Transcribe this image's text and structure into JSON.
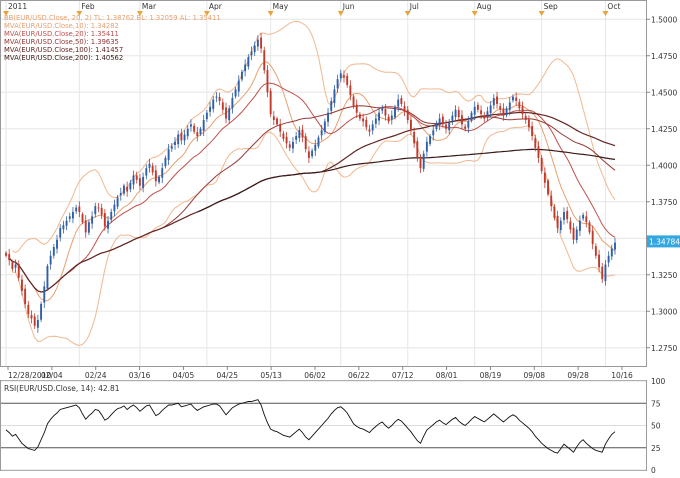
{
  "chart_data": {
    "type": "candlestick",
    "main": {
      "month_labels": [
        "2011",
        "Feb",
        "Mar",
        "Apr",
        "May",
        "Jun",
        "Jul",
        "Aug",
        "Sep",
        "Oct"
      ],
      "date_labels": [
        "12/28/2010",
        "02/04",
        "02/24",
        "03/16",
        "04/05",
        "04/25",
        "05/13",
        "06/02",
        "06/22",
        "07/12",
        "08/01",
        "08/19",
        "09/08",
        "09/28",
        "10/16"
      ],
      "y_ticks": [
        "1.5000",
        "1.4750",
        "1.4500",
        "1.4250",
        "1.4000",
        "1.3750",
        "1.3500",
        "1.3250",
        "1.3000",
        "1.2750"
      ],
      "ylim": [
        1.2625,
        1.5125
      ],
      "last_price": "1.34784",
      "legend": [
        {
          "text": "BB(EUR/USD.Close, 20, 2)  TL: 1.38762  BL: 1.32059  AL: 1.35411",
          "color": "#e8a070"
        },
        {
          "text": "MVA(EUR/USD.Close,10): 1.34282",
          "color": "#e8a070"
        },
        {
          "text": "MVA(EUR/USD.Close,20): 1.35411",
          "color": "#c0504d"
        },
        {
          "text": "MVA(EUR/USD.Close,50): 1.39635",
          "color": "#953735"
        },
        {
          "text": "MVA(EUR/USD.Close,100): 1.41457",
          "color": "#632523"
        },
        {
          "text": "MVA(EUR/USD.Close,200): 1.40562",
          "color": "#3a1a18"
        }
      ],
      "closes": [
        1.338,
        1.335,
        1.329,
        1.332,
        1.323,
        1.314,
        1.305,
        1.298,
        1.295,
        1.29,
        1.294,
        1.305,
        1.317,
        1.331,
        1.338,
        1.344,
        1.349,
        1.357,
        1.359,
        1.362,
        1.365,
        1.368,
        1.371,
        1.368,
        1.361,
        1.354,
        1.361,
        1.365,
        1.372,
        1.371,
        1.366,
        1.358,
        1.362,
        1.368,
        1.373,
        1.378,
        1.381,
        1.386,
        1.382,
        1.388,
        1.393,
        1.39,
        1.386,
        1.392,
        1.398,
        1.401,
        1.395,
        1.389,
        1.392,
        1.398,
        1.405,
        1.411,
        1.413,
        1.416,
        1.421,
        1.417,
        1.421,
        1.425,
        1.428,
        1.423,
        1.42,
        1.425,
        1.431,
        1.436,
        1.44,
        1.445,
        1.447,
        1.444,
        1.438,
        1.432,
        1.439,
        1.446,
        1.452,
        1.458,
        1.464,
        1.469,
        1.474,
        1.478,
        1.482,
        1.486,
        1.48,
        1.465,
        1.45,
        1.435,
        1.431,
        1.428,
        1.423,
        1.418,
        1.415,
        1.412,
        1.416,
        1.42,
        1.424,
        1.419,
        1.411,
        1.405,
        1.41,
        1.414,
        1.419,
        1.424,
        1.43,
        1.436,
        1.444,
        1.452,
        1.459,
        1.463,
        1.46,
        1.455,
        1.448,
        1.44,
        1.436,
        1.432,
        1.43,
        1.426,
        1.423,
        1.428,
        1.432,
        1.436,
        1.439,
        1.434,
        1.43,
        1.434,
        1.44,
        1.445,
        1.442,
        1.437,
        1.431,
        1.424,
        1.415,
        1.405,
        1.398,
        1.408,
        1.416,
        1.42,
        1.424,
        1.429,
        1.432,
        1.428,
        1.425,
        1.429,
        1.434,
        1.438,
        1.433,
        1.428,
        1.425,
        1.43,
        1.436,
        1.44,
        1.438,
        1.435,
        1.432,
        1.437,
        1.441,
        1.446,
        1.442,
        1.438,
        1.434,
        1.439,
        1.443,
        1.447,
        1.444,
        1.439,
        1.435,
        1.431,
        1.426,
        1.42,
        1.412,
        1.405,
        1.396,
        1.388,
        1.38,
        1.372,
        1.364,
        1.357,
        1.362,
        1.368,
        1.363,
        1.356,
        1.349,
        1.356,
        1.362,
        1.366,
        1.361,
        1.354,
        1.346,
        1.338,
        1.33,
        1.322,
        1.332,
        1.338,
        1.343,
        1.347
      ]
    },
    "rsi": {
      "legend": "RSI(EUR/USD.Close, 14): 42.81",
      "y_ticks": [
        "100",
        "75",
        "50",
        "25",
        "0"
      ],
      "ylim": [
        0,
        100
      ],
      "values": [
        45,
        42,
        38,
        40,
        35,
        30,
        27,
        24,
        23,
        22,
        26,
        34,
        42,
        52,
        57,
        61,
        64,
        68,
        69,
        70,
        71,
        72,
        73,
        70,
        63,
        57,
        61,
        64,
        68,
        67,
        62,
        56,
        58,
        62,
        66,
        69,
        70,
        72,
        68,
        71,
        73,
        70,
        66,
        69,
        72,
        73,
        67,
        61,
        63,
        67,
        70,
        73,
        73,
        74,
        75,
        71,
        72,
        73,
        74,
        70,
        67,
        69,
        71,
        72,
        73,
        74,
        74,
        72,
        67,
        62,
        66,
        70,
        72,
        74,
        75,
        76,
        77,
        77,
        78,
        79,
        73,
        62,
        53,
        46,
        44,
        43,
        41,
        39,
        38,
        37,
        40,
        43,
        46,
        42,
        37,
        34,
        38,
        42,
        46,
        50,
        54,
        58,
        63,
        67,
        70,
        71,
        68,
        64,
        58,
        52,
        49,
        47,
        46,
        44,
        42,
        46,
        49,
        52,
        54,
        50,
        47,
        50,
        54,
        57,
        55,
        51,
        47,
        43,
        38,
        33,
        30,
        38,
        45,
        48,
        51,
        54,
        56,
        53,
        51,
        54,
        57,
        59,
        55,
        52,
        50,
        53,
        57,
        60,
        58,
        56,
        54,
        57,
        60,
        63,
        60,
        57,
        54,
        57,
        60,
        62,
        60,
        56,
        53,
        50,
        47,
        43,
        38,
        34,
        30,
        27,
        24,
        22,
        20,
        19,
        24,
        29,
        26,
        23,
        20,
        26,
        31,
        34,
        30,
        27,
        24,
        22,
        21,
        20,
        29,
        35,
        40,
        43
      ]
    }
  }
}
